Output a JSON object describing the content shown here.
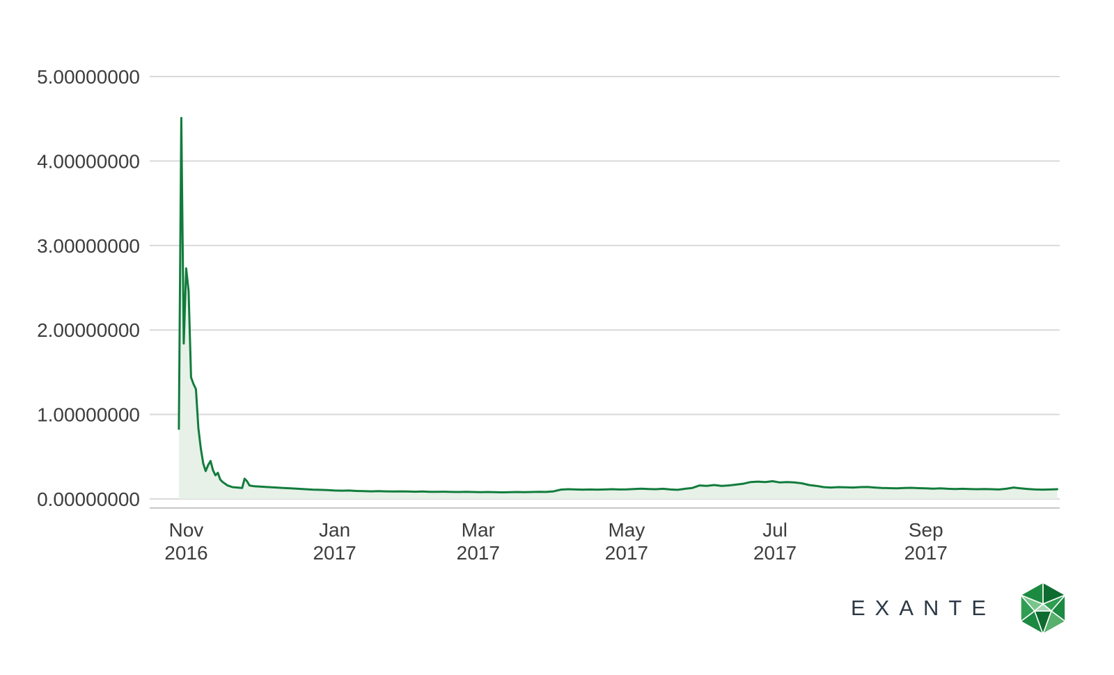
{
  "branding": {
    "logo_text": "EXANTE"
  },
  "colors": {
    "line": "#117c3c",
    "fill": "#e7f1e8",
    "grid": "#d9d9d9",
    "axis": "#c7c7c7",
    "text": "#3d3d3d",
    "logo_text": "#2c3845",
    "brand_green": "#1f8f44"
  },
  "chart_data": {
    "type": "area",
    "title": "",
    "xlabel": "",
    "ylabel": "",
    "grid": "horizontal",
    "legend": "none",
    "x_domain": [
      "2016-10-17",
      "2017-10-26"
    ],
    "y_domain": [
      0,
      5
    ],
    "y_ticks": [
      "0.00000000",
      "1.00000000",
      "2.00000000",
      "3.00000000",
      "4.00000000",
      "5.00000000"
    ],
    "x_ticks": [
      {
        "date": "2016-11-01",
        "line1": "Nov",
        "line2": "2016"
      },
      {
        "date": "2017-01-01",
        "line1": "Jan",
        "line2": "2017"
      },
      {
        "date": "2017-03-01",
        "line1": "Mar",
        "line2": "2017"
      },
      {
        "date": "2017-05-01",
        "line1": "May",
        "line2": "2017"
      },
      {
        "date": "2017-07-01",
        "line1": "Jul",
        "line2": "2017"
      },
      {
        "date": "2017-09-01",
        "line1": "Sep",
        "line2": "2017"
      }
    ],
    "points": [
      [
        "2016-10-29",
        0.83
      ],
      [
        "2016-10-30",
        4.51
      ],
      [
        "2016-10-31",
        1.84
      ],
      [
        "2016-11-01",
        2.73
      ],
      [
        "2016-11-02",
        2.46
      ],
      [
        "2016-11-03",
        1.44
      ],
      [
        "2016-11-04",
        1.36
      ],
      [
        "2016-11-05",
        1.3
      ],
      [
        "2016-11-06",
        0.84
      ],
      [
        "2016-11-07",
        0.6
      ],
      [
        "2016-11-08",
        0.42
      ],
      [
        "2016-11-09",
        0.33
      ],
      [
        "2016-11-10",
        0.4
      ],
      [
        "2016-11-11",
        0.45
      ],
      [
        "2016-11-12",
        0.34
      ],
      [
        "2016-11-13",
        0.28
      ],
      [
        "2016-11-14",
        0.31
      ],
      [
        "2016-11-15",
        0.23
      ],
      [
        "2016-11-16",
        0.2
      ],
      [
        "2016-11-17",
        0.18
      ],
      [
        "2016-11-18",
        0.16
      ],
      [
        "2016-11-20",
        0.14
      ],
      [
        "2016-11-22",
        0.135
      ],
      [
        "2016-11-24",
        0.13
      ],
      [
        "2016-11-25",
        0.24
      ],
      [
        "2016-11-26",
        0.21
      ],
      [
        "2016-11-27",
        0.16
      ],
      [
        "2016-11-29",
        0.15
      ],
      [
        "2016-12-02",
        0.145
      ],
      [
        "2016-12-05",
        0.14
      ],
      [
        "2016-12-08",
        0.135
      ],
      [
        "2016-12-11",
        0.13
      ],
      [
        "2016-12-14",
        0.125
      ],
      [
        "2016-12-17",
        0.12
      ],
      [
        "2016-12-20",
        0.115
      ],
      [
        "2016-12-23",
        0.11
      ],
      [
        "2016-12-26",
        0.108
      ],
      [
        "2016-12-29",
        0.105
      ],
      [
        "2017-01-01",
        0.1
      ],
      [
        "2017-01-04",
        0.098
      ],
      [
        "2017-01-07",
        0.1
      ],
      [
        "2017-01-10",
        0.095
      ],
      [
        "2017-01-13",
        0.092
      ],
      [
        "2017-01-16",
        0.09
      ],
      [
        "2017-01-19",
        0.092
      ],
      [
        "2017-01-22",
        0.09
      ],
      [
        "2017-01-25",
        0.088
      ],
      [
        "2017-01-28",
        0.09
      ],
      [
        "2017-01-31",
        0.088
      ],
      [
        "2017-02-03",
        0.086
      ],
      [
        "2017-02-06",
        0.088
      ],
      [
        "2017-02-09",
        0.085
      ],
      [
        "2017-02-12",
        0.084
      ],
      [
        "2017-02-15",
        0.086
      ],
      [
        "2017-02-18",
        0.083
      ],
      [
        "2017-02-21",
        0.082
      ],
      [
        "2017-02-24",
        0.084
      ],
      [
        "2017-02-27",
        0.082
      ],
      [
        "2017-03-02",
        0.08
      ],
      [
        "2017-03-05",
        0.082
      ],
      [
        "2017-03-08",
        0.08
      ],
      [
        "2017-03-11",
        0.078
      ],
      [
        "2017-03-14",
        0.08
      ],
      [
        "2017-03-17",
        0.082
      ],
      [
        "2017-03-20",
        0.08
      ],
      [
        "2017-03-23",
        0.082
      ],
      [
        "2017-03-26",
        0.085
      ],
      [
        "2017-03-29",
        0.083
      ],
      [
        "2017-04-01",
        0.09
      ],
      [
        "2017-04-04",
        0.11
      ],
      [
        "2017-04-07",
        0.115
      ],
      [
        "2017-04-10",
        0.112
      ],
      [
        "2017-04-13",
        0.11
      ],
      [
        "2017-04-16",
        0.112
      ],
      [
        "2017-04-19",
        0.11
      ],
      [
        "2017-04-22",
        0.112
      ],
      [
        "2017-04-25",
        0.115
      ],
      [
        "2017-04-28",
        0.112
      ],
      [
        "2017-05-01",
        0.113
      ],
      [
        "2017-05-04",
        0.118
      ],
      [
        "2017-05-07",
        0.122
      ],
      [
        "2017-05-10",
        0.118
      ],
      [
        "2017-05-13",
        0.115
      ],
      [
        "2017-05-16",
        0.12
      ],
      [
        "2017-05-19",
        0.112
      ],
      [
        "2017-05-22",
        0.108
      ],
      [
        "2017-05-25",
        0.12
      ],
      [
        "2017-05-28",
        0.13
      ],
      [
        "2017-05-31",
        0.16
      ],
      [
        "2017-06-03",
        0.155
      ],
      [
        "2017-06-06",
        0.165
      ],
      [
        "2017-06-09",
        0.155
      ],
      [
        "2017-06-12",
        0.16
      ],
      [
        "2017-06-15",
        0.17
      ],
      [
        "2017-06-18",
        0.18
      ],
      [
        "2017-06-21",
        0.2
      ],
      [
        "2017-06-24",
        0.205
      ],
      [
        "2017-06-27",
        0.2
      ],
      [
        "2017-06-30",
        0.21
      ],
      [
        "2017-07-03",
        0.195
      ],
      [
        "2017-07-06",
        0.2
      ],
      [
        "2017-07-09",
        0.195
      ],
      [
        "2017-07-12",
        0.185
      ],
      [
        "2017-07-15",
        0.165
      ],
      [
        "2017-07-18",
        0.155
      ],
      [
        "2017-07-21",
        0.14
      ],
      [
        "2017-07-24",
        0.135
      ],
      [
        "2017-07-27",
        0.14
      ],
      [
        "2017-07-30",
        0.138
      ],
      [
        "2017-08-02",
        0.135
      ],
      [
        "2017-08-05",
        0.14
      ],
      [
        "2017-08-08",
        0.142
      ],
      [
        "2017-08-11",
        0.135
      ],
      [
        "2017-08-14",
        0.13
      ],
      [
        "2017-08-17",
        0.128
      ],
      [
        "2017-08-20",
        0.125
      ],
      [
        "2017-08-23",
        0.13
      ],
      [
        "2017-08-26",
        0.132
      ],
      [
        "2017-08-29",
        0.128
      ],
      [
        "2017-09-01",
        0.125
      ],
      [
        "2017-09-04",
        0.122
      ],
      [
        "2017-09-07",
        0.125
      ],
      [
        "2017-09-10",
        0.12
      ],
      [
        "2017-09-13",
        0.118
      ],
      [
        "2017-09-16",
        0.12
      ],
      [
        "2017-09-19",
        0.118
      ],
      [
        "2017-09-22",
        0.115
      ],
      [
        "2017-09-25",
        0.118
      ],
      [
        "2017-09-28",
        0.115
      ],
      [
        "2017-10-01",
        0.112
      ],
      [
        "2017-10-04",
        0.12
      ],
      [
        "2017-10-07",
        0.135
      ],
      [
        "2017-10-10",
        0.125
      ],
      [
        "2017-10-13",
        0.118
      ],
      [
        "2017-10-16",
        0.112
      ],
      [
        "2017-10-19",
        0.11
      ],
      [
        "2017-10-22",
        0.112
      ],
      [
        "2017-10-25",
        0.115
      ]
    ]
  }
}
